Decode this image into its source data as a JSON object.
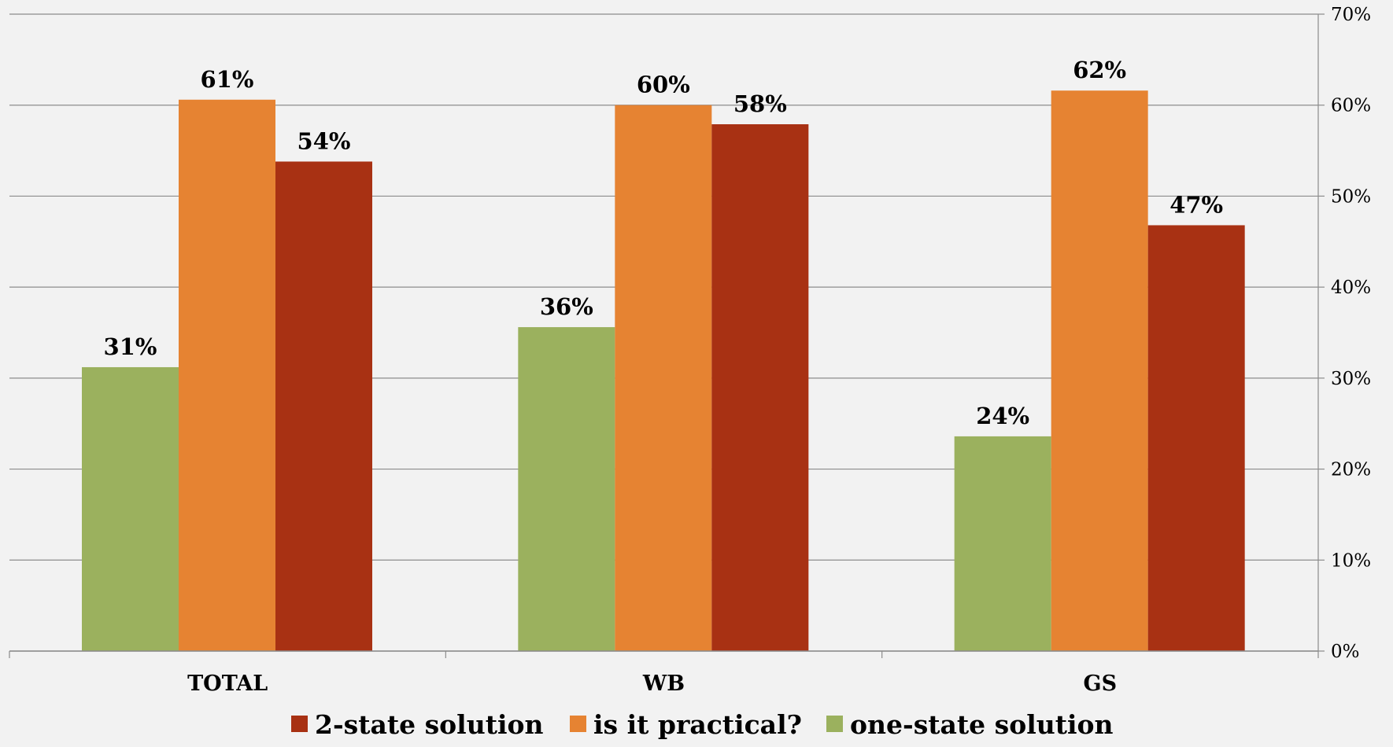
{
  "chart_data": {
    "type": "bar",
    "categories": [
      "TOTAL",
      "WB",
      "GS"
    ],
    "series": [
      {
        "name": "one-state solution",
        "color": "#9bb15e",
        "values": [
          31,
          36,
          24
        ]
      },
      {
        "name": "is it practical?",
        "color": "#e68332",
        "values": [
          61,
          60,
          62
        ]
      },
      {
        "name": "2-state solution",
        "color": "#a83113",
        "values": [
          54,
          58,
          47
        ]
      }
    ],
    "data_labels": [
      [
        "31%",
        "36%",
        "24%"
      ],
      [
        "61%",
        "60%",
        "62%"
      ],
      [
        "54%",
        "58%",
        "47%"
      ]
    ],
    "bar_values": [
      [
        31.2,
        35.6,
        23.6
      ],
      [
        60.6,
        60.0,
        61.6
      ],
      [
        53.8,
        57.9,
        46.8
      ]
    ],
    "ylim": [
      0,
      70
    ],
    "yticks": [
      0,
      10,
      20,
      30,
      40,
      50,
      60,
      70
    ],
    "ytick_labels": [
      "0%",
      "10%",
      "20%",
      "30%",
      "40%",
      "50%",
      "60%",
      "70%"
    ],
    "y_axis_side": "right",
    "grid": true,
    "legend": {
      "position": "bottom",
      "order": [
        "2-state solution",
        "is it practical?",
        "one-state solution"
      ]
    },
    "title": "",
    "xlabel": "",
    "ylabel": ""
  }
}
